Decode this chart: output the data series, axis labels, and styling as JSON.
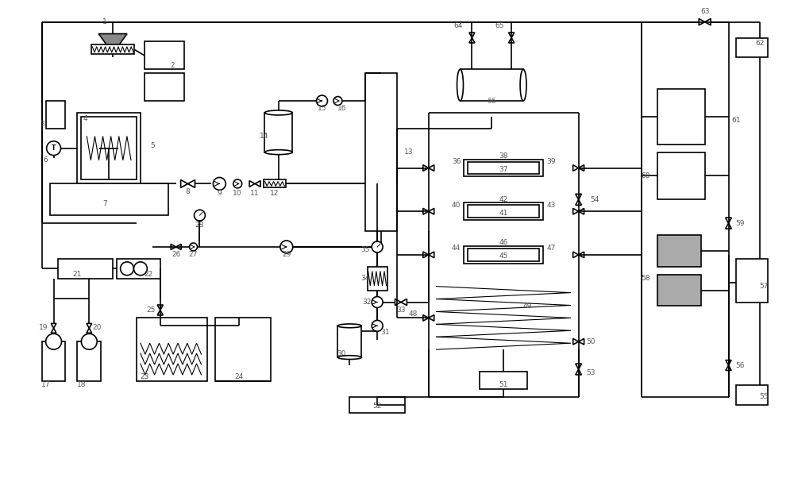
{
  "bg_color": "#ffffff",
  "line_color": "#000000",
  "lw": 1.2,
  "fig_width": 10.0,
  "fig_height": 6.02,
  "label_color": "#555555",
  "label_fs": 6.5
}
